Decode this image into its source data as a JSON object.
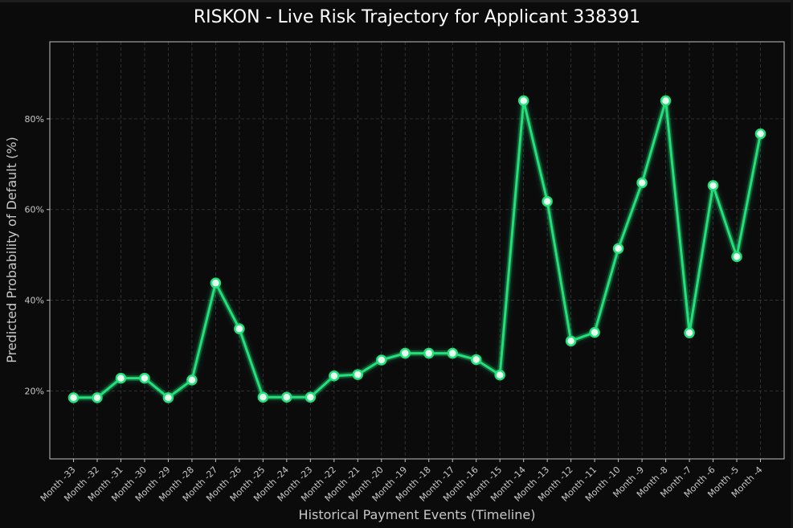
{
  "chart_data": {
    "type": "line",
    "title": "RISKON - Live Risk Trajectory for Applicant 338391",
    "xlabel": "Historical Payment Events (Timeline)",
    "ylabel": "Predicted Probability of Default (%)",
    "categories": [
      "Month -33",
      "Month -32",
      "Month -31",
      "Month -30",
      "Month -29",
      "Month -28",
      "Month -27",
      "Month -26",
      "Month -25",
      "Month -24",
      "Month -23",
      "Month -22",
      "Month -21",
      "Month -20",
      "Month -19",
      "Month -18",
      "Month -17",
      "Month -16",
      "Month -15",
      "Month -14",
      "Month -13",
      "Month -12",
      "Month -11",
      "Month -10",
      "Month -9",
      "Month -8",
      "Month -7",
      "Month -6",
      "Month -5",
      "Month -4"
    ],
    "series": [
      {
        "values": [
          18.5,
          18.5,
          22.8,
          22.8,
          18.5,
          22.4,
          43.8,
          33.7,
          18.6,
          18.6,
          18.6,
          23.3,
          23.6,
          26.8,
          28.3,
          28.3,
          28.3,
          26.9,
          23.5,
          84.0,
          61.8,
          31.0,
          32.9,
          51.4,
          65.9,
          84.0,
          32.8,
          65.3,
          49.6,
          76.7
        ]
      }
    ],
    "ylim": [
      5,
      97
    ],
    "yticks": [
      20,
      40,
      60,
      80
    ],
    "ytick_labels": [
      "20%",
      "40%",
      "60%",
      "80%"
    ],
    "grid": true,
    "colors": {
      "background": "#0b0b0b",
      "plot_background": "#0b0b0b",
      "line": "#22e07a",
      "marker_fill": "#e8fff0",
      "frame": "#bfbfbf"
    }
  }
}
